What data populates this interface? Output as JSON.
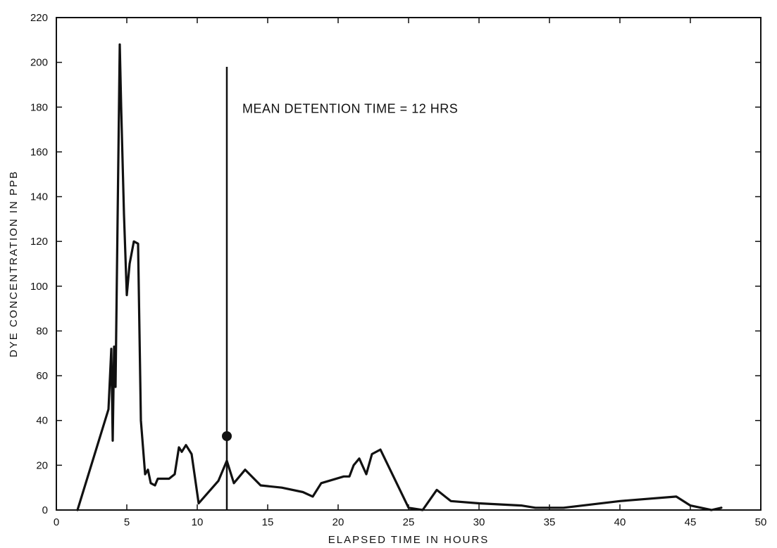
{
  "chart_data": {
    "type": "line",
    "title": "",
    "xlabel": "ELAPSED TIME IN HOURS",
    "ylabel": "DYE CONCENTRATION IN PPB",
    "xlim": [
      0,
      50
    ],
    "ylim": [
      0,
      220
    ],
    "xticks": [
      0,
      5,
      10,
      15,
      20,
      25,
      30,
      35,
      40,
      45,
      50
    ],
    "yticks": [
      0,
      20,
      40,
      60,
      80,
      100,
      120,
      140,
      160,
      180,
      200,
      220
    ],
    "grid": false,
    "series": [
      {
        "x": [
          1.5,
          3.7,
          3.9,
          4.0,
          4.1,
          4.2,
          4.5,
          4.6,
          4.8,
          5.0,
          5.2,
          5.5,
          5.8,
          6.0,
          6.3,
          6.5,
          6.7,
          7.0,
          7.2,
          8.0,
          8.4,
          8.7,
          8.9,
          9.2,
          9.6,
          10.1,
          11.5,
          12.1,
          12.6,
          13.4,
          14.5,
          16.0,
          17.5,
          18.2,
          18.8,
          20.4,
          20.8,
          21.1,
          21.5,
          22.0,
          22.4,
          23.0,
          25.0,
          26.0,
          27.0,
          28.0,
          30.0,
          33.0,
          34.0,
          36.0,
          40.0,
          44.0,
          45.0,
          46.5,
          47.2
        ],
        "y": [
          0,
          45,
          72,
          31,
          73,
          55,
          208,
          180,
          132,
          96,
          110,
          120,
          119,
          40,
          16,
          18,
          12,
          11,
          14,
          14,
          16,
          28,
          26,
          29,
          25,
          3,
          13,
          22,
          12,
          18,
          11,
          10,
          8,
          6,
          12,
          15,
          15,
          20,
          23,
          16,
          25,
          27,
          1,
          0,
          9,
          4,
          3,
          2,
          1,
          1,
          4,
          6,
          2,
          0,
          1
        ]
      }
    ],
    "annotations": [
      {
        "text": "MEAN DETENTION TIME = 12 HRS",
        "x": 12.1,
        "y_top": 198,
        "point_y": 33
      }
    ],
    "colors": {
      "line": "#111111",
      "axis": "#111111",
      "background": "#ffffff"
    }
  }
}
